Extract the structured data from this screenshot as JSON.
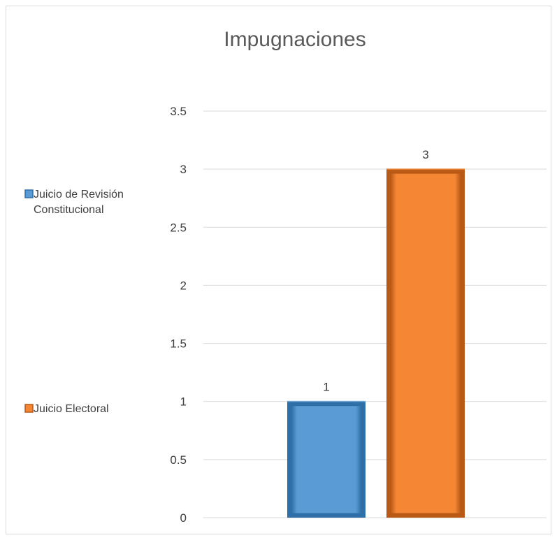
{
  "chart_data": {
    "type": "bar",
    "title": "Impugnaciones",
    "xlabel": "",
    "ylabel": "",
    "ylim": [
      0,
      3.5
    ],
    "yticks": [
      "0",
      "0.5",
      "1",
      "1.5",
      "2",
      "2.5",
      "3",
      "3.5"
    ],
    "grid": true,
    "legend_position": "left",
    "series": [
      {
        "name": "Juicio de Revisión Constitucional",
        "value": 1,
        "label": "1",
        "color": "#5b9bd5",
        "edge_color": "#2e6fa7"
      },
      {
        "name": "Juicio Electoral",
        "value": 3,
        "label": "3",
        "color": "#f58634",
        "edge_color": "#b85a16"
      }
    ]
  }
}
